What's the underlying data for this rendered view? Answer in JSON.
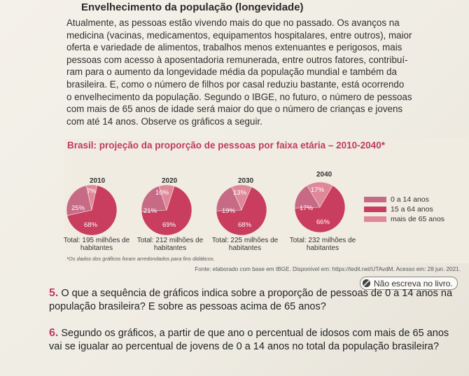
{
  "title": "Envelhecimento da população (longevidade)",
  "paragraph": "Atualmente, as pessoas estão vivendo mais do que no passado. Os avanços na\nmedicina (vacinas, medicamentos, equipamentos hospitalares, entre outros), maior\noferta e variedade de alimentos, trabalhos menos extenuantes e perigosos, mais\npessoas com acesso à aposentadoria remunerada, entre outros fatores, contribuí-\nram para o aumento da longevidade média da população mundial e também da\nbrasileira. E, como o número de filhos por casal reduziu bastante, está ocorrendo\no envelhecimento da população. Segundo o IBGE, no futuro, o número de pessoas\ncom mais de 65 anos de idade será maior do que o número de crianças e jovens\ncom até 14 anos. Observe os gráficos a seguir.",
  "colors": {
    "young": "#c76a86",
    "adult": "#c93d5e",
    "elder": "#e08899",
    "accent": "#c0395f"
  },
  "chart_data": {
    "type": "pie",
    "title": "Brasil: projeção da proporção de pessoas por faixa etária – 2010-2040*",
    "series_names": [
      "0 a 14 anos",
      "15 a 64 anos",
      "mais de 65 anos"
    ],
    "pies": [
      {
        "year": "2010",
        "values": [
          25,
          68,
          7
        ],
        "labels": [
          "25%",
          "68%",
          "7%"
        ],
        "total": "Total: 195 milhões de habitantes"
      },
      {
        "year": "2020",
        "values": [
          21,
          69,
          10
        ],
        "labels": [
          "21%",
          "69%",
          "10%"
        ],
        "total": "Total: 212 milhões de habitantes"
      },
      {
        "year": "2030",
        "values": [
          19,
          68,
          13
        ],
        "labels": [
          "19%",
          "68%",
          "13%"
        ],
        "total": "Total: 225 milhões de habitantes"
      },
      {
        "year": "2040",
        "values": [
          17,
          66,
          17
        ],
        "labels": [
          "17%",
          "66%",
          "17%"
        ],
        "total": "Total: 232 milhões de habitantes"
      }
    ],
    "legend": [
      "0 a 14 anos",
      "15 a 64 anos",
      "mais de 65 anos"
    ]
  },
  "footnote": "*Os dados dos gráficos foram arredondados para fins didáticos.",
  "source": "Fonte: elaborado com base em IBGE. Disponível em: https://tedit.net/UTAvdM. Acesso em: 28 jun. 2021.",
  "nao_escreva": "Não escreva no livro.",
  "questions": [
    {
      "num": "5.",
      "text": "O que a sequência de gráficos indica sobre a proporção de pessoas de 0 a 14 anos na população brasileira? E sobre as pessoas acima de 65 anos?"
    },
    {
      "num": "6.",
      "text": "Segundo os gráficos, a partir de que ano o percentual de idosos com mais de 65 anos vai se igualar ao percentual de jovens de 0 a 14 anos no total da população brasileira?"
    }
  ]
}
